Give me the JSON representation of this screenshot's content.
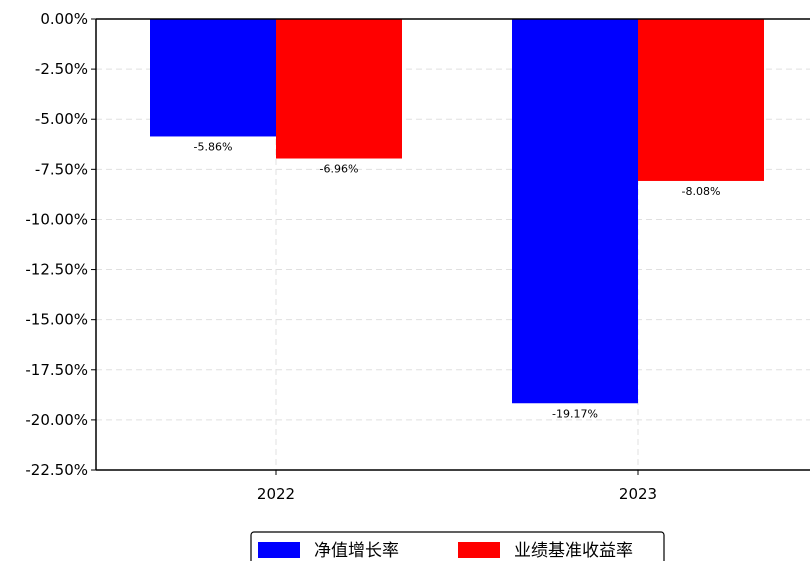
{
  "chart_data": {
    "type": "bar",
    "categories": [
      "2022",
      "2023"
    ],
    "series": [
      {
        "name": "净值增长率",
        "values": [
          -5.86,
          -19.17
        ],
        "color": "#0000ff",
        "labels": [
          "-5.86%",
          "-19.17%"
        ]
      },
      {
        "name": "业绩基准收益率",
        "values": [
          -6.96,
          -8.08
        ],
        "color": "#ff0000",
        "labels": [
          "-6.96%",
          "-8.08%"
        ]
      }
    ],
    "y_ticks": [
      0,
      -2.5,
      -5,
      -7.5,
      -10,
      -12.5,
      -15,
      -17.5,
      -20,
      -22.5
    ],
    "y_tick_labels": [
      "0.00%",
      "-2.50%",
      "-5.00%",
      "-7.50%",
      "-10.00%",
      "-12.50%",
      "-15.00%",
      "-17.50%",
      "-20.00%",
      "-22.50%"
    ],
    "ylim": [
      -22.5,
      0
    ],
    "ylabel": "",
    "xlabel": "",
    "title": "",
    "grid": true,
    "legend_position": "bottom-center"
  }
}
